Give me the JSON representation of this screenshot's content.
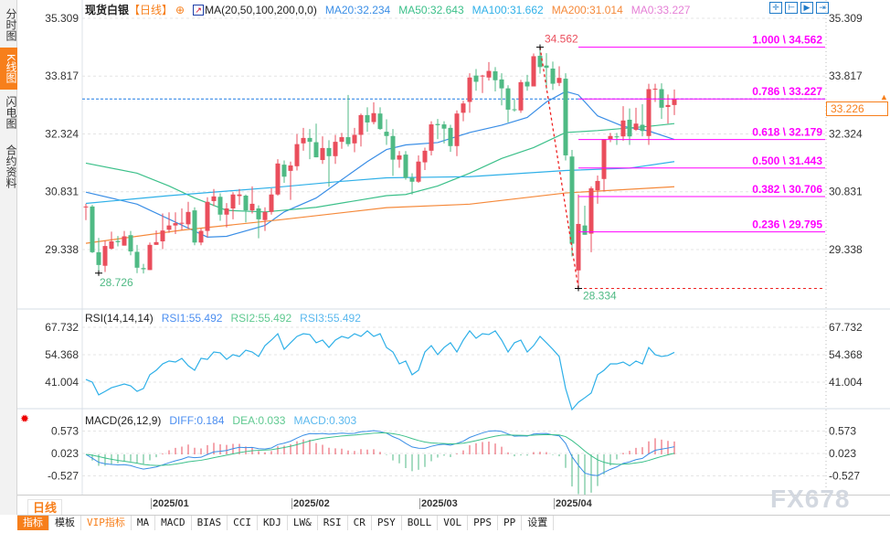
{
  "sidebar": {
    "tabs": [
      {
        "label": "分时图",
        "active": false
      },
      {
        "label": "K线图",
        "active": true
      },
      {
        "label": "闪电图",
        "active": false
      },
      {
        "label": "合约资料",
        "active": false
      }
    ]
  },
  "header": {
    "symbol": "现货白银",
    "period": "【日线】",
    "ma_label": "MA(20,50,100,200,0,0)",
    "ma_values": [
      {
        "label": "MA20:32.234",
        "color": "#3a8ee6"
      },
      {
        "label": "MA50:32.643",
        "color": "#3cc08a"
      },
      {
        "label": "MA100:31.662",
        "color": "#2fb0e8"
      },
      {
        "label": "MA200:31.014",
        "color": "#f5893a"
      },
      {
        "label": "MA0:33.227",
        "color": "#e57fd6"
      }
    ],
    "tool_icons": [
      "crosshair-icon",
      "zoom-left-icon",
      "zoom-right-icon",
      "move-right-icon"
    ]
  },
  "colors": {
    "up": "#ea4e5c",
    "down": "#4fba84",
    "accent": "#f77f1b",
    "fib": "#ff00ff",
    "ma20": "#3a8ee6",
    "ma50": "#3cc08a",
    "ma100": "#2fb0e8",
    "ma200": "#f5893a"
  },
  "chart_data": [
    {
      "type": "candlestick",
      "title": "现货白银 日线",
      "y_ticks": [
        "35.309",
        "33.817",
        "32.324",
        "30.831",
        "29.338"
      ],
      "ylim": [
        27.9,
        35.5
      ],
      "x_ticks": [
        "2025/01",
        "2025/02",
        "2025/03",
        "2025/04"
      ],
      "x_tick_index": [
        10,
        32,
        52,
        73
      ],
      "ohlc": [
        [
          30.43,
          30.52,
          30.1,
          30.45
        ],
        [
          30.45,
          30.49,
          29.25,
          29.27
        ],
        [
          29.27,
          29.64,
          28.73,
          28.94
        ],
        [
          28.92,
          29.57,
          28.76,
          29.43
        ],
        [
          29.36,
          29.8,
          29.34,
          29.55
        ],
        [
          29.56,
          29.69,
          29.42,
          29.53
        ],
        [
          29.44,
          29.82,
          29.44,
          29.68
        ],
        [
          29.71,
          29.82,
          29.19,
          29.29
        ],
        [
          29.28,
          29.46,
          28.73,
          28.87
        ],
        [
          28.86,
          28.97,
          28.72,
          28.83
        ],
        [
          28.81,
          29.52,
          28.81,
          29.46
        ],
        [
          29.46,
          29.83,
          29.46,
          29.53
        ],
        [
          29.55,
          30.27,
          29.35,
          29.83
        ],
        [
          29.85,
          30.3,
          29.77,
          29.96
        ],
        [
          29.96,
          30.3,
          29.74,
          30.02
        ],
        [
          30.02,
          30.4,
          29.84,
          30.03
        ],
        [
          29.99,
          30.57,
          29.88,
          30.31
        ],
        [
          30.35,
          30.43,
          29.45,
          29.52
        ],
        [
          29.52,
          29.88,
          29.45,
          29.82
        ],
        [
          29.82,
          30.69,
          29.66,
          30.57
        ],
        [
          30.59,
          30.9,
          30.46,
          30.71
        ],
        [
          30.7,
          30.79,
          30.08,
          30.24
        ],
        [
          30.24,
          30.54,
          29.91,
          30.4
        ],
        [
          30.4,
          30.82,
          30.12,
          30.76
        ],
        [
          30.72,
          30.9,
          30.49,
          30.76
        ],
        [
          30.73,
          30.76,
          30.04,
          30.35
        ],
        [
          30.35,
          30.97,
          30.27,
          30.52
        ],
        [
          30.4,
          30.48,
          29.63,
          30.12
        ],
        [
          30.1,
          30.43,
          29.82,
          30.31
        ],
        [
          30.31,
          30.92,
          30.24,
          30.76
        ],
        [
          30.76,
          31.67,
          30.73,
          31.56
        ],
        [
          31.53,
          31.64,
          31.06,
          31.22
        ],
        [
          31.37,
          31.61,
          30.62,
          31.51
        ],
        [
          31.49,
          32.32,
          31.38,
          32.06
        ],
        [
          32.08,
          32.48,
          31.89,
          32.22
        ],
        [
          32.22,
          32.45,
          31.67,
          32.12
        ],
        [
          32.11,
          32.59,
          31.72,
          31.72
        ],
        [
          31.65,
          32.26,
          31.55,
          31.96
        ],
        [
          31.96,
          32.16,
          30.96,
          31.75
        ],
        [
          31.75,
          32.3,
          31.55,
          32.12
        ],
        [
          32.12,
          32.35,
          31.94,
          32.24
        ],
        [
          32.24,
          33.33,
          32.0,
          32.06
        ],
        [
          32.08,
          32.48,
          31.85,
          32.3
        ],
        [
          32.3,
          32.85,
          32.0,
          32.81
        ],
        [
          32.81,
          33.01,
          32.38,
          32.62
        ],
        [
          32.63,
          33.14,
          32.57,
          32.86
        ],
        [
          32.85,
          33.01,
          32.43,
          32.45
        ],
        [
          32.38,
          32.7,
          32.04,
          32.27
        ],
        [
          32.27,
          32.45,
          31.24,
          31.66
        ],
        [
          31.66,
          31.88,
          31.45,
          31.77
        ],
        [
          31.79,
          31.88,
          31.14,
          31.19
        ],
        [
          31.19,
          31.31,
          30.76,
          31.09
        ],
        [
          31.09,
          31.77,
          31.06,
          31.61
        ],
        [
          31.59,
          31.97,
          31.39,
          31.89
        ],
        [
          31.89,
          32.65,
          31.77,
          32.57
        ],
        [
          32.58,
          32.71,
          32.19,
          32.55
        ],
        [
          32.57,
          32.65,
          32.08,
          32.46
        ],
        [
          32.48,
          32.56,
          31.86,
          32.01
        ],
        [
          32.01,
          32.93,
          31.75,
          32.85
        ],
        [
          32.87,
          33.18,
          32.65,
          33.11
        ],
        [
          33.15,
          33.89,
          32.87,
          33.78
        ],
        [
          33.83,
          34.0,
          33.44,
          33.67
        ],
        [
          33.81,
          33.85,
          33.38,
          33.83
        ],
        [
          33.78,
          34.18,
          33.7,
          33.95
        ],
        [
          33.94,
          34.05,
          33.42,
          33.71
        ],
        [
          33.73,
          33.89,
          33.06,
          33.5
        ],
        [
          33.5,
          33.58,
          32.62,
          32.95
        ],
        [
          32.96,
          33.22,
          32.9,
          32.95
        ],
        [
          32.93,
          33.72,
          32.87,
          33.66
        ],
        [
          33.67,
          33.85,
          33.44,
          33.55
        ],
        [
          33.55,
          34.4,
          33.55,
          34.33
        ],
        [
          34.34,
          34.562,
          33.88,
          34.05
        ],
        [
          34.09,
          34.41,
          33.48,
          34.03
        ],
        [
          34.01,
          34.19,
          33.46,
          33.62
        ],
        [
          33.64,
          34.07,
          33.56,
          33.77
        ],
        [
          33.75,
          33.89,
          31.64,
          31.77
        ],
        [
          31.74,
          31.91,
          29.16,
          29.49
        ],
        [
          28.8,
          30.76,
          28.334,
          30.0
        ],
        [
          29.96,
          30.47,
          29.72,
          29.72
        ],
        [
          29.75,
          30.97,
          29.27,
          30.92
        ],
        [
          30.87,
          31.25,
          30.52,
          31.11
        ],
        [
          31.16,
          32.19,
          30.84,
          32.19
        ],
        [
          32.19,
          32.35,
          32.11,
          32.27
        ],
        [
          32.26,
          32.35,
          32.04,
          32.25
        ],
        [
          32.26,
          33.04,
          32.15,
          32.67
        ],
        [
          32.69,
          32.98,
          32.04,
          32.26
        ],
        [
          32.43,
          33.0,
          32.4,
          32.59
        ],
        [
          32.56,
          33.09,
          32.26,
          32.4
        ],
        [
          32.27,
          33.62,
          32.04,
          33.48
        ],
        [
          33.48,
          33.62,
          33.15,
          33.49
        ],
        [
          33.48,
          33.63,
          32.71,
          33.0
        ],
        [
          33.02,
          33.34,
          32.59,
          33.07
        ],
        [
          33.07,
          33.47,
          32.81,
          33.227
        ]
      ],
      "ma_series": [
        {
          "name": "MA20",
          "points": [
            [
              0,
              30.82
            ],
            [
              8,
              30.51
            ],
            [
              19,
              29.66
            ],
            [
              22,
              29.68
            ],
            [
              28,
              29.96
            ],
            [
              31,
              30.31
            ],
            [
              36,
              30.67
            ],
            [
              40,
              31.14
            ],
            [
              44,
              31.61
            ],
            [
              47,
              31.92
            ],
            [
              50,
              32.04
            ],
            [
              55,
              32.1
            ],
            [
              60,
              32.36
            ],
            [
              65,
              32.55
            ],
            [
              69,
              32.75
            ],
            [
              72,
              33.15
            ],
            [
              75,
              33.42
            ],
            [
              77,
              33.33
            ],
            [
              80,
              32.79
            ],
            [
              84,
              32.52
            ],
            [
              88,
              32.4
            ],
            [
              92,
              32.18
            ]
          ]
        },
        {
          "name": "MA50",
          "points": [
            [
              0,
              31.57
            ],
            [
              8,
              31.31
            ],
            [
              13,
              30.98
            ],
            [
              17,
              30.67
            ],
            [
              22,
              30.35
            ],
            [
              28,
              30.31
            ],
            [
              36,
              30.43
            ],
            [
              47,
              30.73
            ],
            [
              50,
              30.76
            ],
            [
              55,
              30.98
            ],
            [
              60,
              31.31
            ],
            [
              65,
              31.69
            ],
            [
              70,
              31.97
            ],
            [
              75,
              32.36
            ],
            [
              80,
              32.41
            ],
            [
              88,
              32.52
            ],
            [
              92,
              32.59
            ]
          ]
        },
        {
          "name": "MA100",
          "points": [
            [
              0,
              30.53
            ],
            [
              13,
              30.73
            ],
            [
              30,
              30.95
            ],
            [
              40,
              31.1
            ],
            [
              47,
              31.19
            ],
            [
              60,
              31.22
            ],
            [
              75,
              31.38
            ],
            [
              85,
              31.44
            ],
            [
              92,
              31.61
            ]
          ]
        },
        {
          "name": "MA200",
          "points": [
            [
              0,
              29.5
            ],
            [
              15,
              29.84
            ],
            [
              30,
              30.1
            ],
            [
              47,
              30.42
            ],
            [
              60,
              30.51
            ],
            [
              75,
              30.8
            ],
            [
              92,
              30.96
            ]
          ]
        }
      ],
      "ma0_line": 33.227,
      "high_label": "34.562",
      "high_index": 71,
      "low_label": "28.334",
      "low_index": 77,
      "prev_low_label": "28.726",
      "prev_low_index": 2,
      "fib_levels": [
        {
          "label": "1.000 \\ 34.562",
          "value": 34.562
        },
        {
          "label": "0.786 \\ 33.227",
          "value": 33.227
        },
        {
          "label": "0.618 \\ 32.179",
          "value": 32.179
        },
        {
          "label": "0.500 \\ 31.443",
          "value": 31.443
        },
        {
          "label": "0.382 \\ 30.706",
          "value": 30.706
        },
        {
          "label": "0.236 \\ 29.795",
          "value": 29.795
        }
      ],
      "current_price": "33.226"
    },
    {
      "type": "line",
      "title": "RSI(14,14,14)",
      "legend": [
        "RSI1:55.492",
        "RSI2:55.492",
        "RSI3:55.492"
      ],
      "y_ticks": [
        "67.732",
        "54.368",
        "41.004"
      ],
      "values": [
        42.3,
        41.0,
        34.8,
        36.5,
        38.3,
        39.2,
        40.1,
        39.2,
        36.5,
        37.9,
        44.6,
        46.8,
        49.9,
        51.3,
        50.8,
        52.6,
        49.0,
        46.8,
        52.6,
        52.1,
        55.7,
        55.3,
        52.1,
        54.4,
        53.5,
        56.6,
        55.7,
        53.5,
        58.8,
        61.5,
        64.6,
        57.0,
        60.2,
        63.3,
        64.6,
        64.2,
        60.2,
        61.5,
        57.9,
        61.5,
        63.3,
        62.4,
        64.6,
        63.3,
        66.0,
        63.3,
        64.6,
        57.9,
        55.7,
        49.9,
        51.3,
        44.6,
        46.8,
        55.7,
        58.8,
        54.4,
        57.9,
        60.2,
        55.7,
        61.5,
        66.0,
        62.4,
        64.6,
        64.2,
        66.0,
        61.5,
        55.7,
        60.2,
        61.5,
        55.7,
        58.8,
        63.3,
        60.2,
        57.0,
        53.5,
        37.9,
        27.6,
        31.2,
        33.4,
        35.7,
        44.6,
        46.8,
        49.9,
        49.9,
        50.8,
        49.0,
        51.3,
        49.9,
        57.9,
        54.4,
        53.5,
        54.0,
        55.5
      ]
    },
    {
      "type": "bar+line",
      "title": "MACD(26,12,9)",
      "legend": [
        "DIFF:0.184",
        "DEA:0.033",
        "MACD:0.303"
      ],
      "y_ticks": [
        "0.573",
        "0.023",
        "-0.527"
      ]
    }
  ],
  "bottom": {
    "period_button": "日线▲",
    "watermark": "FX678",
    "tabs": [
      {
        "label": "指标",
        "active": true
      },
      {
        "label": "模板"
      },
      {
        "label": "VIP指标",
        "vip": true
      },
      {
        "label": "MA"
      },
      {
        "label": "MACD"
      },
      {
        "label": "BIAS"
      },
      {
        "label": "CCI"
      },
      {
        "label": "KDJ"
      },
      {
        "label": "LW&"
      },
      {
        "label": "RSI"
      },
      {
        "label": "CR"
      },
      {
        "label": "PSY"
      },
      {
        "label": "BOLL"
      },
      {
        "label": "VOL"
      },
      {
        "label": "PPS"
      },
      {
        "label": "PP"
      },
      {
        "label": "设置"
      }
    ]
  }
}
